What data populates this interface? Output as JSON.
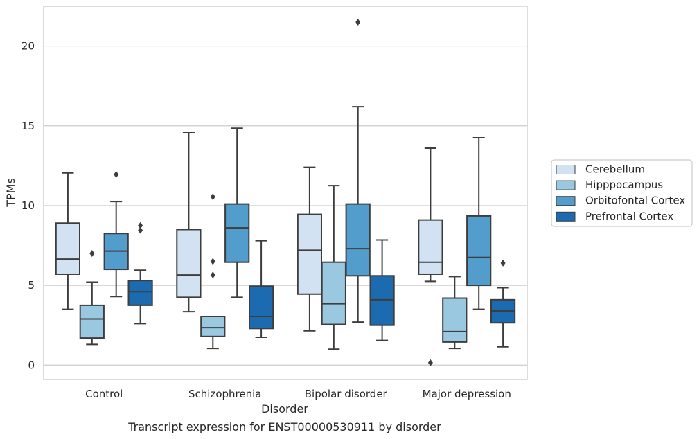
{
  "chart_data": {
    "type": "box",
    "xlabel": "Disorder",
    "ylabel": "TPMs",
    "caption": "Transcript expression for ENST00000530911 by disorder",
    "ylim": [
      -0.9,
      22.5
    ],
    "yticks": [
      0,
      5,
      10,
      15,
      20
    ],
    "grid": "horizontal",
    "legend_position": "right",
    "categories": [
      "Control",
      "Schizophrenia",
      "Bipolar disorder",
      "Major depression"
    ],
    "series": [
      {
        "name": "Cerebellum",
        "color": "#d2e2f2",
        "boxes": [
          {
            "whislo": 3.5,
            "q1": 5.7,
            "med": 6.65,
            "q3": 8.9,
            "whishi": 12.05,
            "fliers": []
          },
          {
            "whislo": 3.35,
            "q1": 4.25,
            "med": 5.65,
            "q3": 8.5,
            "whishi": 14.6,
            "fliers": []
          },
          {
            "whislo": 2.15,
            "q1": 4.45,
            "med": 7.2,
            "q3": 9.45,
            "whishi": 12.4,
            "fliers": []
          },
          {
            "whislo": 5.25,
            "q1": 5.7,
            "med": 6.45,
            "q3": 9.1,
            "whishi": 13.6,
            "fliers": [
              0.15
            ]
          }
        ]
      },
      {
        "name": "Hipppocampus",
        "color": "#9ac8e0",
        "boxes": [
          {
            "whislo": 1.3,
            "q1": 1.7,
            "med": 2.9,
            "q3": 3.75,
            "whishi": 5.2,
            "fliers": [
              7.0
            ]
          },
          {
            "whislo": 1.05,
            "q1": 1.8,
            "med": 2.35,
            "q3": 3.05,
            "whishi": 3.05,
            "fliers": [
              5.65,
              6.5,
              10.55
            ]
          },
          {
            "whislo": 1.0,
            "q1": 2.55,
            "med": 3.85,
            "q3": 6.45,
            "whishi": 11.25,
            "fliers": []
          },
          {
            "whislo": 1.05,
            "q1": 1.45,
            "med": 2.1,
            "q3": 4.2,
            "whishi": 5.55,
            "fliers": []
          }
        ]
      },
      {
        "name": "Orbitofontal Cortex",
        "color": "#529dcc",
        "boxes": [
          {
            "whislo": 4.3,
            "q1": 6.0,
            "med": 7.15,
            "q3": 8.25,
            "whishi": 10.25,
            "fliers": [
              11.95
            ]
          },
          {
            "whislo": 4.25,
            "q1": 6.45,
            "med": 8.6,
            "q3": 10.1,
            "whishi": 14.85,
            "fliers": []
          },
          {
            "whislo": 2.7,
            "q1": 5.6,
            "med": 7.3,
            "q3": 10.1,
            "whishi": 16.2,
            "fliers": [
              21.5
            ]
          },
          {
            "whislo": 3.5,
            "q1": 5.0,
            "med": 6.75,
            "q3": 9.35,
            "whishi": 14.25,
            "fliers": []
          }
        ]
      },
      {
        "name": "Prefrontal Cortex",
        "color": "#1c6aaf",
        "boxes": [
          {
            "whislo": 2.6,
            "q1": 3.75,
            "med": 4.6,
            "q3": 5.3,
            "whishi": 5.95,
            "fliers": [
              8.45,
              8.75
            ]
          },
          {
            "whislo": 1.75,
            "q1": 2.3,
            "med": 3.05,
            "q3": 4.95,
            "whishi": 7.8,
            "fliers": []
          },
          {
            "whislo": 1.55,
            "q1": 2.5,
            "med": 4.1,
            "q3": 5.6,
            "whishi": 7.85,
            "fliers": []
          },
          {
            "whislo": 1.15,
            "q1": 2.65,
            "med": 3.4,
            "q3": 4.1,
            "whishi": 4.85,
            "fliers": [
              6.4
            ]
          }
        ]
      }
    ]
  }
}
